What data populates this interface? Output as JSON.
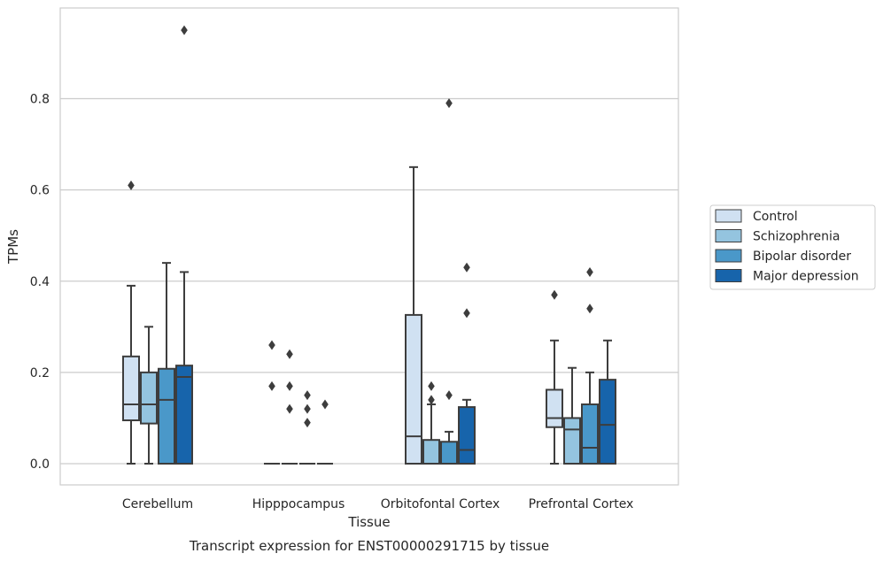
{
  "chart_data": {
    "type": "box",
    "xlabel": "Tissue",
    "ylabel": "TPMs",
    "caption": "Transcript expression for ENST00000291715 by tissue",
    "ylim": [
      -0.045,
      1.0
    ],
    "yticks": [
      "0.0",
      "0.2",
      "0.4",
      "0.6",
      "0.8"
    ],
    "categories": [
      "Cerebellum",
      "Hipppocampus",
      "Orbitofontal Cortex",
      "Prefrontal Cortex"
    ],
    "grid": true,
    "legend_position": "right",
    "series": [
      {
        "name": "Control",
        "color": "#d0e1f2",
        "boxes": [
          {
            "q1": 0.095,
            "median": 0.13,
            "q3": 0.235,
            "whisker_low": 0.0,
            "whisker_high": 0.39,
            "outliers": [
              0.61
            ]
          },
          {
            "q1": 0.0,
            "median": 0.0,
            "q3": 0.0,
            "whisker_low": 0.0,
            "whisker_high": 0.0,
            "outliers": [
              0.17,
              0.26
            ]
          },
          {
            "q1": 0.0,
            "median": 0.06,
            "q3": 0.326,
            "whisker_low": 0.0,
            "whisker_high": 0.65,
            "outliers": []
          },
          {
            "q1": 0.08,
            "median": 0.1,
            "q3": 0.162,
            "whisker_low": 0.0,
            "whisker_high": 0.27,
            "outliers": [
              0.37
            ]
          }
        ]
      },
      {
        "name": "Schizophrenia",
        "color": "#94c4df",
        "boxes": [
          {
            "q1": 0.088,
            "median": 0.13,
            "q3": 0.2,
            "whisker_low": 0.0,
            "whisker_high": 0.3,
            "outliers": []
          },
          {
            "q1": 0.0,
            "median": 0.0,
            "q3": 0.0,
            "whisker_low": 0.0,
            "whisker_high": 0.0,
            "outliers": [
              0.12,
              0.17,
              0.24
            ]
          },
          {
            "q1": 0.0,
            "median": 0.0,
            "q3": 0.052,
            "whisker_low": 0.0,
            "whisker_high": 0.13,
            "outliers": [
              0.14,
              0.17
            ]
          },
          {
            "q1": 0.0,
            "median": 0.075,
            "q3": 0.1,
            "whisker_low": 0.0,
            "whisker_high": 0.21,
            "outliers": []
          }
        ]
      },
      {
        "name": "Bipolar disorder",
        "color": "#4a98c9",
        "boxes": [
          {
            "q1": 0.0,
            "median": 0.14,
            "q3": 0.208,
            "whisker_low": 0.0,
            "whisker_high": 0.44,
            "outliers": []
          },
          {
            "q1": 0.0,
            "median": 0.0,
            "q3": 0.0,
            "whisker_low": 0.0,
            "whisker_high": 0.0,
            "outliers": [
              0.09,
              0.12,
              0.15
            ]
          },
          {
            "q1": 0.0,
            "median": 0.0,
            "q3": 0.048,
            "whisker_low": 0.0,
            "whisker_high": 0.07,
            "outliers": [
              0.15,
              0.79
            ]
          },
          {
            "q1": 0.0,
            "median": 0.035,
            "q3": 0.13,
            "whisker_low": 0.0,
            "whisker_high": 0.2,
            "outliers": [
              0.34,
              0.42
            ]
          }
        ]
      },
      {
        "name": "Major depression",
        "color": "#1764ab",
        "boxes": [
          {
            "q1": 0.0,
            "median": 0.19,
            "q3": 0.215,
            "whisker_low": 0.0,
            "whisker_high": 0.42,
            "outliers": [
              0.95
            ]
          },
          {
            "q1": 0.0,
            "median": 0.0,
            "q3": 0.0,
            "whisker_low": 0.0,
            "whisker_high": 0.0,
            "outliers": [
              0.13
            ]
          },
          {
            "q1": 0.0,
            "median": 0.03,
            "q3": 0.124,
            "whisker_low": 0.0,
            "whisker_high": 0.14,
            "outliers": [
              0.33,
              0.43
            ]
          },
          {
            "q1": 0.0,
            "median": 0.085,
            "q3": 0.184,
            "whisker_low": 0.0,
            "whisker_high": 0.27,
            "outliers": []
          }
        ]
      }
    ]
  }
}
